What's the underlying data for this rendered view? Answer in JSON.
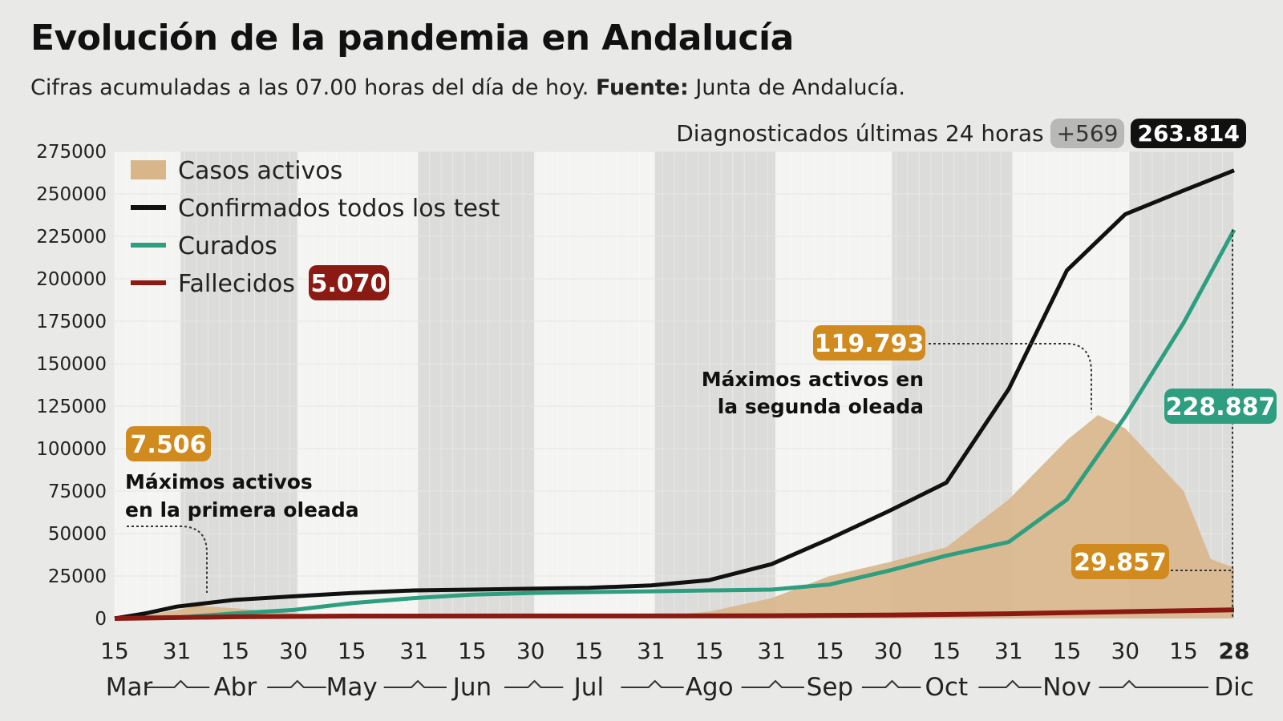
{
  "title": "Evolución de la pandemia en Andalucía",
  "subtitle": {
    "text": "Cifras acumuladas a las 07.00 horas del día de hoy.",
    "source_label": "Fuente:",
    "source": "Junta de Andalucía."
  },
  "diagnosticados": {
    "label": "Diagnosticados últimas 24 horas",
    "delta": "+569",
    "total": "263.814"
  },
  "chart_data": {
    "type": "line",
    "title": "Evolución de la pandemia en Andalucía",
    "x_unit": "days since 15 Mar (2020)",
    "ylim": [
      0,
      275000
    ],
    "yticks": [
      0,
      25000,
      50000,
      75000,
      100000,
      125000,
      150000,
      175000,
      200000,
      225000,
      250000,
      275000
    ],
    "xticks": [
      {
        "day": 0,
        "label": "15"
      },
      {
        "day": 16,
        "label": "31"
      },
      {
        "day": 31,
        "label": "15"
      },
      {
        "day": 46,
        "label": "30"
      },
      {
        "day": 61,
        "label": "15"
      },
      {
        "day": 77,
        "label": "31"
      },
      {
        "day": 92,
        "label": "15"
      },
      {
        "day": 107,
        "label": "30"
      },
      {
        "day": 122,
        "label": "15"
      },
      {
        "day": 138,
        "label": "31"
      },
      {
        "day": 153,
        "label": "15"
      },
      {
        "day": 169,
        "label": "31"
      },
      {
        "day": 184,
        "label": "15"
      },
      {
        "day": 199,
        "label": "30"
      },
      {
        "day": 214,
        "label": "15"
      },
      {
        "day": 230,
        "label": "31"
      },
      {
        "day": 245,
        "label": "15"
      },
      {
        "day": 260,
        "label": "30"
      },
      {
        "day": 275,
        "label": "15"
      },
      {
        "day": 288,
        "label": "28"
      }
    ],
    "months": [
      {
        "label": "Mar",
        "day": 0
      },
      {
        "label": "Abr",
        "day": 31
      },
      {
        "label": "May",
        "day": 61
      },
      {
        "label": "Jun",
        "day": 92
      },
      {
        "label": "Jul",
        "day": 122
      },
      {
        "label": "Ago",
        "day": 153
      },
      {
        "label": "Sep",
        "day": 184
      },
      {
        "label": "Oct",
        "day": 214
      },
      {
        "label": "Nov",
        "day": 245
      },
      {
        "label": "Dic",
        "day": 288
      }
    ],
    "month_starts": [
      17,
      47,
      78,
      108,
      139,
      170,
      200,
      231,
      261
    ],
    "series": [
      {
        "name": "Casos activos",
        "type": "area",
        "color": "#d8b689",
        "x": [
          0,
          8,
          16,
          21,
          31,
          46,
          61,
          77,
          92,
          107,
          122,
          138,
          153,
          169,
          184,
          199,
          214,
          230,
          245,
          253,
          260,
          275,
          282,
          288
        ],
        "values": [
          0,
          2000,
          5000,
          7506,
          6000,
          3000,
          1500,
          500,
          300,
          300,
          500,
          1000,
          4000,
          12000,
          25000,
          33000,
          42000,
          70000,
          105000,
          119793,
          112000,
          75000,
          35000,
          29857
        ]
      },
      {
        "name": "Confirmados todos los test",
        "type": "line",
        "color": "#111111",
        "x": [
          0,
          8,
          16,
          31,
          46,
          61,
          77,
          92,
          107,
          122,
          138,
          153,
          169,
          184,
          199,
          214,
          230,
          245,
          260,
          275,
          288
        ],
        "values": [
          0,
          3000,
          7000,
          11000,
          13000,
          15000,
          16500,
          17000,
          17500,
          18000,
          19500,
          22600,
          32000,
          47000,
          63000,
          80000,
          135000,
          205000,
          238000,
          252000,
          263814
        ]
      },
      {
        "name": "Curados",
        "type": "line",
        "color": "#2e9e80",
        "x": [
          0,
          16,
          31,
          46,
          61,
          77,
          92,
          107,
          122,
          138,
          153,
          169,
          184,
          199,
          214,
          230,
          245,
          260,
          275,
          288
        ],
        "values": [
          0,
          500,
          3000,
          5000,
          9000,
          12000,
          14000,
          15000,
          15500,
          16000,
          16500,
          17000,
          20000,
          28000,
          37000,
          45000,
          70000,
          119000,
          174000,
          228887
        ]
      },
      {
        "name": "Fallecidos",
        "type": "line",
        "color": "#8b1a12",
        "x": [
          0,
          31,
          61,
          122,
          169,
          199,
          230,
          260,
          288
        ],
        "values": [
          0,
          1000,
          1400,
          1450,
          1600,
          2000,
          2800,
          4000,
          5070
        ]
      }
    ],
    "annotations": [
      {
        "value": "7.506",
        "text1": "Máximos activos",
        "text2": "en la primera oleada",
        "color": "#d08a1e"
      },
      {
        "value": "119.793",
        "text1": "Máximos activos en",
        "text2": "la segunda oleada",
        "color": "#d08a1e"
      },
      {
        "value": "228.887",
        "color": "#2e9e80"
      },
      {
        "value": "29.857",
        "color": "#d08a1e"
      },
      {
        "value": "5.070",
        "color": "#8b1a12"
      }
    ],
    "grid": true,
    "legend": "top-left"
  }
}
